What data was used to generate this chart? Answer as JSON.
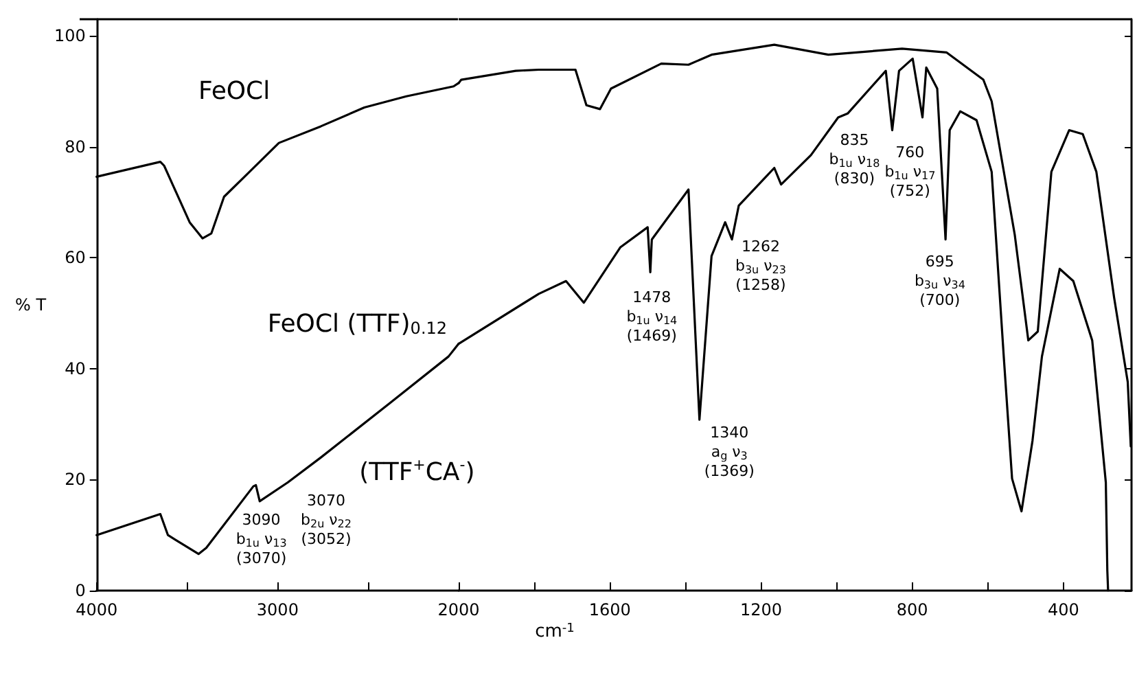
{
  "chart_data": [
    {
      "type": "line",
      "ylabel": "% T",
      "xlim": [
        4000,
        2000
      ],
      "ylim": [
        0,
        103
      ],
      "xticks": [
        4000,
        {
          "value": 3500,
          "label": null
        },
        3000,
        {
          "value": 2500,
          "label": null
        },
        2000
      ],
      "yticks": [
        0,
        20,
        40,
        60,
        80,
        100
      ],
      "grid": false,
      "legend": false,
      "marker": "none",
      "line_style": "solid",
      "series": [
        {
          "name": "FeOCl",
          "color": "#000000",
          "x": [
            4000,
            3648,
            3627,
            3486,
            3415,
            3366,
            3296,
            3155,
            2993,
            2761,
            2521,
            2289,
            2028,
            2000
          ],
          "values": [
            74.6,
            77.3,
            76.6,
            66.4,
            63.5,
            64.4,
            71,
            75.5,
            80.7,
            83.7,
            87.1,
            89.1,
            90.9,
            91.5
          ]
        },
        {
          "name": "FeOCl (TTF)$_{0.12}$",
          "color": "#000000",
          "x": [
            4000,
            3648,
            3606,
            3437,
            3394,
            3134,
            3120,
            3099,
            2944,
            2761,
            2380,
            2056,
            2000
          ],
          "values": [
            10,
            13.8,
            10,
            6.6,
            7.7,
            18.8,
            19,
            16.1,
            19.5,
            24,
            33.8,
            42.2,
            44.5
          ]
        }
      ],
      "annotations": [
        "(TTF$^{+}$CA$^{-}$)",
        "3090\nb$_{1u}$ ν$_{13}$\n(3070)",
        "3070\nb$_{2u}$ ν$_{22}$\n(3052)"
      ]
    },
    {
      "type": "line",
      "xlabel": "cm$^{-1}$",
      "xlim": [
        2000,
        220
      ],
      "ylim": [
        0,
        103
      ],
      "xticks": [
        {
          "value": 1800,
          "label": null
        },
        1600,
        {
          "value": 1400,
          "label": null
        },
        1200,
        {
          "value": 1000,
          "label": null
        },
        800,
        {
          "value": 600,
          "label": null
        },
        400
      ],
      "yticks": [
        0,
        20,
        40,
        60,
        80,
        100
      ],
      "tick_labels": "x",
      "grid": false,
      "legend": false,
      "marker": "none",
      "line_style": "solid",
      "series": [
        {
          "color": "#000000",
          "x": [
            2000,
            1993,
            1849,
            1788,
            1741,
            1691,
            1662,
            1626,
            1597,
            1464,
            1392,
            1331,
            1165,
            1022,
            827,
            709,
            612,
            590,
            529,
            493,
            468,
            432,
            385,
            349,
            313,
            266,
            230,
            222
          ],
          "values": [
            91.5,
            92.1,
            93.7,
            93.9,
            93.9,
            93.9,
            87.5,
            86.8,
            90.5,
            95,
            94.8,
            96.6,
            98.4,
            96.6,
            97.7,
            97,
            92.1,
            88.2,
            64.2,
            45.1,
            46.7,
            75.5,
            83,
            82.3,
            75.5,
            52.8,
            37.6,
            26
          ]
        },
        {
          "color": "#000000",
          "x": [
            2000,
            1788,
            1716,
            1669,
            1572,
            1500,
            1493,
            1489,
            1392,
            1363,
            1331,
            1295,
            1277,
            1259,
            1165,
            1147,
            1068,
            996,
            971,
            870,
            853,
            835,
            799,
            773,
            763,
            734,
            712,
            701,
            673,
            630,
            590,
            558,
            536,
            511,
            482,
            457,
            410,
            374,
            324,
            288,
            284,
            282
          ],
          "values": [
            44.5,
            53.5,
            55.8,
            51.9,
            61.9,
            65.5,
            57.4,
            63.3,
            72.3,
            30.8,
            60.3,
            66.4,
            63.3,
            69.4,
            76.2,
            73.2,
            78.5,
            85.3,
            86,
            93.7,
            83,
            93.7,
            95.9,
            85.3,
            94.3,
            90.5,
            63.3,
            83,
            86.4,
            84.8,
            75.5,
            42.2,
            20.2,
            14.3,
            27,
            42.2,
            58,
            55.8,
            45.1,
            19.5,
            3.6,
            0
          ]
        }
      ],
      "annotations": [
        "1478\nb$_{1u}$ ν$_{14}$\n(1469)",
        "1262\nb$_{3u}$ ν$_{23}$\n(1258)",
        "1340\na$_{g}$ ν$_{3}$\n(1369)",
        "835\nb$_{1u}$ ν$_{18}$\n(830)",
        "760\nb$_{1u}$ ν$_{17}$\n(752)",
        "695\nb$_{3u}$ ν$_{34}$\n(700)"
      ]
    }
  ]
}
